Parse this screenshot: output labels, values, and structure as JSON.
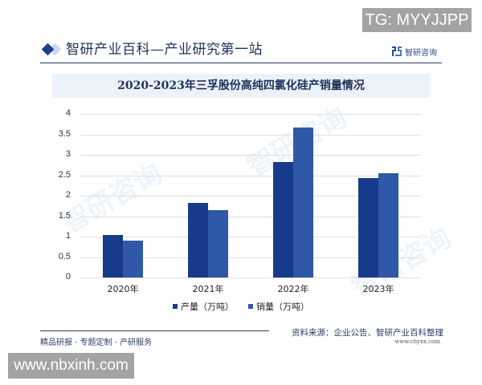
{
  "watermark_top": {
    "text": "TG: MYYJJPP"
  },
  "watermark_bottom": {
    "text": "www.nbxinh.com"
  },
  "header": {
    "title": "智研产业百科—产业研究第一站",
    "brand": "智研咨询"
  },
  "chart_data": {
    "type": "bar",
    "title": "2020-2023年三孚股份高纯四氯化硅产销量情况",
    "categories": [
      "2020年",
      "2021年",
      "2022年",
      "2023年"
    ],
    "series": [
      {
        "name": "产量（万吨）",
        "color": "#173B8A",
        "values": [
          1.04,
          1.82,
          2.82,
          2.43
        ]
      },
      {
        "name": "销量（万吨）",
        "color": "#2F58A6",
        "values": [
          0.9,
          1.65,
          3.67,
          2.55
        ]
      }
    ],
    "xlabel": "",
    "ylabel": "",
    "ylim": [
      0,
      4
    ],
    "yticks": [
      "0",
      "0.5",
      "1",
      "1.5",
      "2",
      "2.5",
      "3",
      "3.5",
      "4"
    ],
    "grid": true,
    "legend_position": "bottom"
  },
  "footer": {
    "tagline": "精品研报 · 专题定制 · 产研服务",
    "source": "资料来源：企业公告、智研产业百科整理",
    "url": "www.chyxx.com"
  }
}
